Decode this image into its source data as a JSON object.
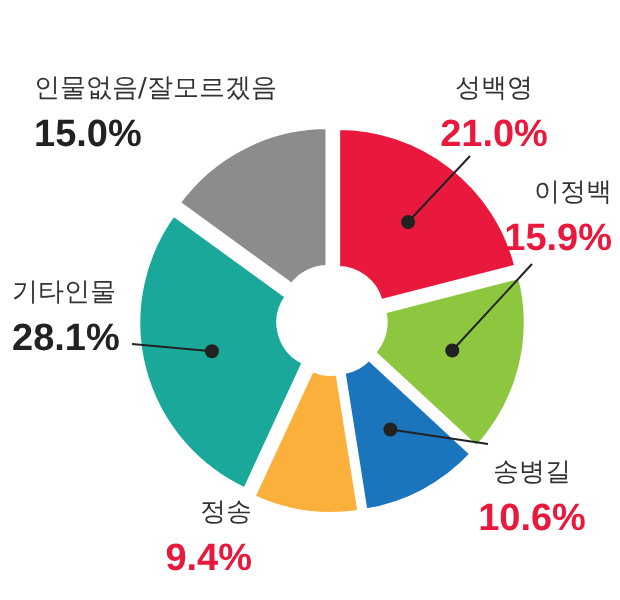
{
  "chart_data": {
    "type": "donut",
    "categories": [
      "성백영",
      "이정백",
      "송병길",
      "정송",
      "기타인물",
      "인물없음/잘모르겠음"
    ],
    "values": [
      21.0,
      15.9,
      10.6,
      9.4,
      28.1,
      15.0
    ],
    "colors": [
      "#e8193c",
      "#8dc63f",
      "#1a75bc",
      "#fbb03b",
      "#1aa89a",
      "#8c8c8c"
    ],
    "value_labels": [
      "21.0%",
      "15.9%",
      "10.6%",
      "9.4%",
      "28.1%",
      "15.0%"
    ]
  }
}
